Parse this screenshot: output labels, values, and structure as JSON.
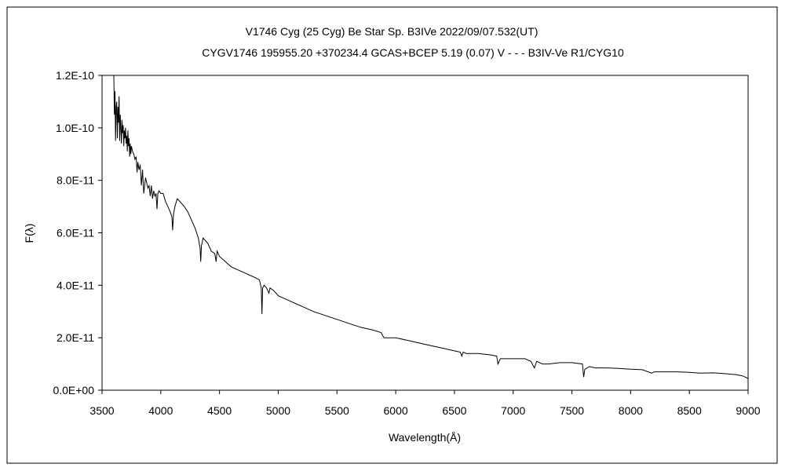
{
  "chart_data": {
    "type": "line",
    "title": "V1746 Cyg (25 Cyg)    Be Star    Sp. B3IVe    2022/09/07.532(UT)",
    "subtitle": "CYGV1746 195955.20 +370234.4 GCAS+BCEP 5.19 (0.07) V - - - B3IV-Ve R1/CYG10",
    "xlabel": "Wavelength(Å)",
    "ylabel": "F(λ)",
    "xlim": [
      3500,
      9000
    ],
    "ylim": [
      0,
      1.2e-10
    ],
    "x_ticks": [
      3500,
      4000,
      4500,
      5000,
      5500,
      6000,
      6500,
      7000,
      7500,
      8000,
      8500,
      9000
    ],
    "x_tick_labels": [
      "3500",
      "4000",
      "4500",
      "5000",
      "5500",
      "6000",
      "6500",
      "7000",
      "7500",
      "8000",
      "8500",
      "9000"
    ],
    "y_ticks": [
      0,
      2e-11,
      4e-11,
      6e-11,
      8e-11,
      1e-10,
      1.2e-10
    ],
    "y_tick_labels": [
      "0.0E+00",
      "2.0E-11",
      "4.0E-11",
      "6.0E-11",
      "8.0E-11",
      "1.0E-10",
      "1.2E-10"
    ],
    "grid": false,
    "series": [
      {
        "color": "#000000",
        "x": [
          3600,
          3605,
          3610,
          3615,
          3620,
          3625,
          3630,
          3635,
          3640,
          3645,
          3650,
          3655,
          3660,
          3665,
          3670,
          3675,
          3680,
          3685,
          3690,
          3695,
          3700,
          3705,
          3710,
          3715,
          3720,
          3725,
          3730,
          3735,
          3740,
          3745,
          3750,
          3760,
          3770,
          3780,
          3790,
          3798,
          3805,
          3815,
          3825,
          3835,
          3845,
          3855,
          3870,
          3880,
          3890,
          3900,
          3910,
          3920,
          3930,
          3940,
          3950,
          3960,
          3968,
          3975,
          3985,
          4000,
          4020,
          4040,
          4060,
          4080,
          4095,
          4101,
          4108,
          4120,
          4140,
          4160,
          4180,
          4200,
          4230,
          4260,
          4290,
          4320,
          4335,
          4340,
          4346,
          4360,
          4380,
          4400,
          4430,
          4460,
          4471,
          4480,
          4500,
          4550,
          4600,
          4650,
          4700,
          4750,
          4800,
          4840,
          4855,
          4861,
          4867,
          4880,
          4900,
          4921,
          4930,
          4960,
          5000,
          5100,
          5200,
          5300,
          5400,
          5500,
          5600,
          5700,
          5800,
          5875,
          5900,
          6000,
          6100,
          6200,
          6300,
          6400,
          6500,
          6550,
          6563,
          6575,
          6600,
          6700,
          6800,
          6860,
          6870,
          6890,
          6950,
          7000,
          7100,
          7150,
          7180,
          7200,
          7250,
          7300,
          7400,
          7500,
          7590,
          7600,
          7610,
          7650,
          7700,
          7800,
          7900,
          8000,
          8100,
          8180,
          8200,
          8300,
          8400,
          8500,
          8600,
          8700,
          8800,
          8900,
          8950,
          9000
        ],
        "y": [
          1.2e-10,
          1.05e-10,
          1.14e-10,
          9.5e-11,
          1.08e-10,
          1.1e-10,
          9.6e-11,
          1.08e-10,
          1.02e-10,
          1.12e-10,
          9.5e-11,
          1.05e-10,
          1e-10,
          9.4e-11,
          1.03e-10,
          9.8e-11,
          1.01e-10,
          9.3e-11,
          9.9e-11,
          9.6e-11,
          1e-10,
          9.4e-11,
          9.7e-11,
          9.1e-11,
          9.9e-11,
          9.3e-11,
          9.6e-11,
          8.9e-11,
          9.4e-11,
          9e-11,
          9.3e-11,
          9.1e-11,
          9e-11,
          8.8e-11,
          8.9e-11,
          8.3e-11,
          8.7e-11,
          8.4e-11,
          8.6e-11,
          7.8e-11,
          8.4e-11,
          7.5e-11,
          8.1e-11,
          7.9e-11,
          7.7e-11,
          7.8e-11,
          7.4e-11,
          7.8e-11,
          7.3e-11,
          7.6e-11,
          7.4e-11,
          7.5e-11,
          6.9e-11,
          7.5e-11,
          7.6e-11,
          7.5e-11,
          7.5e-11,
          7.2e-11,
          7e-11,
          6.8e-11,
          6.6e-11,
          6.1e-11,
          6.7e-11,
          7e-11,
          7.3e-11,
          7.2e-11,
          7.1e-11,
          7e-11,
          6.8e-11,
          6.5e-11,
          6.2e-11,
          5.8e-11,
          5.4e-11,
          4.9e-11,
          5.5e-11,
          5.8e-11,
          5.7e-11,
          5.6e-11,
          5.3e-11,
          5.2e-11,
          4.9e-11,
          5.3e-11,
          5.1e-11,
          4.9e-11,
          4.7e-11,
          4.6e-11,
          4.5e-11,
          4.4e-11,
          4.3e-11,
          4.2e-11,
          3.9e-11,
          2.9e-11,
          3.9e-11,
          4e-11,
          3.9e-11,
          3.7e-11,
          3.9e-11,
          3.8e-11,
          3.6e-11,
          3.4e-11,
          3.2e-11,
          3e-11,
          2.85e-11,
          2.7e-11,
          2.55e-11,
          2.4e-11,
          2.3e-11,
          2.2e-11,
          2e-11,
          2e-11,
          1.9e-11,
          1.8e-11,
          1.7e-11,
          1.6e-11,
          1.5e-11,
          1.45e-11,
          1.3e-11,
          1.45e-11,
          1.4e-11,
          1.4e-11,
          1.35e-11,
          1.3e-11,
          1e-11,
          1.2e-11,
          1.2e-11,
          1.2e-11,
          1.2e-11,
          1.1e-11,
          8.5e-12,
          1.1e-11,
          1e-11,
          1e-11,
          1.05e-11,
          1.05e-11,
          1e-11,
          5e-12,
          8e-12,
          9e-12,
          8.5e-12,
          8.5e-12,
          8.3e-12,
          8e-12,
          7.8e-12,
          6.5e-12,
          7e-12,
          7e-12,
          7e-12,
          6.8e-12,
          6.5e-12,
          6.6e-12,
          6.3e-12,
          5.9e-12,
          5.5e-12,
          4.5e-12
        ]
      }
    ]
  }
}
